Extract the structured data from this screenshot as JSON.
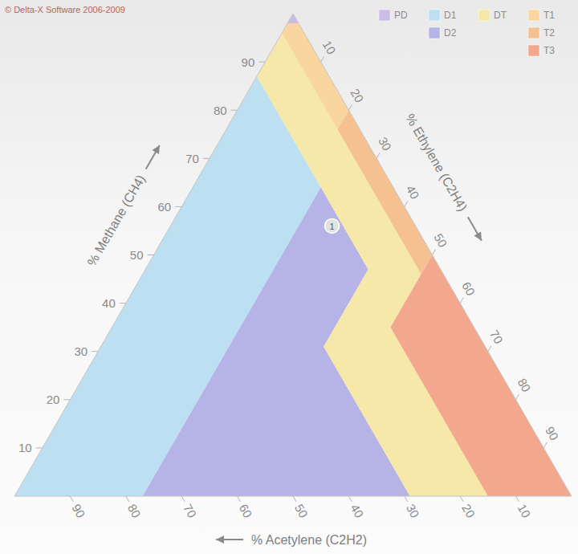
{
  "chart_data": {
    "type": "ternary",
    "copyright": "© Delta-X Software 2006-2009",
    "axes": [
      {
        "label": "% Methane (CH4)",
        "lim": [
          0,
          100
        ],
        "ticks": [
          10,
          20,
          30,
          40,
          50,
          60,
          70,
          80,
          90
        ]
      },
      {
        "label": "% Ethylene (C2H4)",
        "lim": [
          0,
          100
        ],
        "ticks": [
          10,
          20,
          30,
          40,
          50,
          60,
          70,
          80,
          90
        ]
      },
      {
        "label": "% Acetylene (C2H2)",
        "lim": [
          0,
          100
        ],
        "ticks": [
          10,
          20,
          30,
          40,
          50,
          60,
          70,
          80,
          90
        ]
      }
    ],
    "zones": [
      {
        "name": "PD",
        "color": "#cbbbe9",
        "vertices": [
          [
            100,
            0,
            0
          ],
          [
            98,
            2,
            0
          ],
          [
            98,
            0,
            2
          ]
        ]
      },
      {
        "name": "D1",
        "color": "#bcdff2",
        "vertices": [
          [
            0,
            0,
            100
          ],
          [
            87,
            0,
            13
          ],
          [
            64,
            23,
            13
          ],
          [
            0,
            23,
            77
          ]
        ]
      },
      {
        "name": "D2",
        "color": "#b6b4e6",
        "vertices": [
          [
            0,
            23,
            77
          ],
          [
            64,
            23,
            13
          ],
          [
            47,
            40,
            13
          ],
          [
            31,
            40,
            29
          ],
          [
            0,
            71,
            29
          ]
        ]
      },
      {
        "name": "DT",
        "color": "#f5e8a8",
        "vertices": [
          [
            87,
            0,
            13
          ],
          [
            96,
            0,
            4
          ],
          [
            76,
            20,
            4
          ],
          [
            46,
            50,
            4
          ],
          [
            35,
            50,
            15
          ],
          [
            0,
            85,
            15
          ],
          [
            0,
            71,
            29
          ],
          [
            31,
            40,
            29
          ],
          [
            47,
            40,
            13
          ],
          [
            64,
            23,
            13
          ]
        ]
      },
      {
        "name": "T1",
        "color": "#f9d6a0",
        "vertices": [
          [
            98,
            0,
            2
          ],
          [
            98,
            2,
            0
          ],
          [
            80,
            20,
            0
          ],
          [
            76,
            20,
            4
          ],
          [
            96,
            0,
            4
          ]
        ]
      },
      {
        "name": "T2",
        "color": "#f6c191",
        "vertices": [
          [
            76,
            20,
            4
          ],
          [
            80,
            20,
            0
          ],
          [
            50,
            50,
            0
          ],
          [
            46,
            50,
            4
          ]
        ]
      },
      {
        "name": "T3",
        "color": "#f3a88e",
        "vertices": [
          [
            35,
            50,
            15
          ],
          [
            50,
            50,
            0
          ],
          [
            0,
            100,
            0
          ],
          [
            0,
            85,
            15
          ]
        ]
      }
    ],
    "points": [
      {
        "label": "1",
        "values": [
          56,
          29,
          15
        ]
      }
    ],
    "legend": "top-right"
  }
}
